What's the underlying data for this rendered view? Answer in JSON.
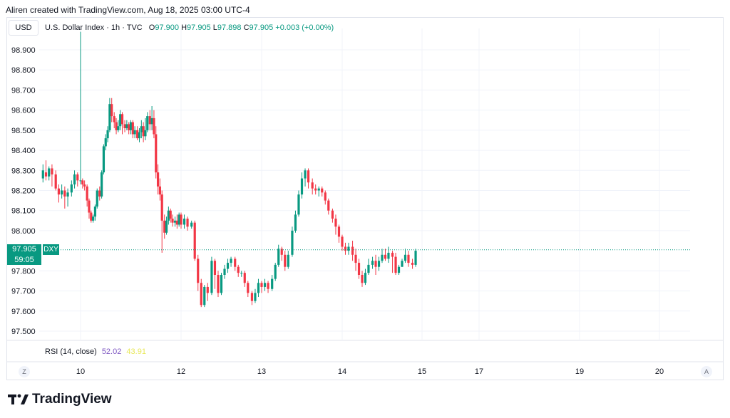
{
  "caption": "Aliren created with TradingView.com, Aug 18, 2025 03:00 UTC-4",
  "currency_button": "USD",
  "legend": {
    "symbol_text": "U.S. Dollar Index · 1h · TVC",
    "o_label": "O",
    "o_value": "97.900",
    "h_label": "H",
    "h_value": "97.905",
    "l_label": "L",
    "l_value": "97.898",
    "c_label": "C",
    "c_value": "97.905",
    "change": "+0.003 (+0.00%)"
  },
  "rsi": {
    "label": "RSI (14, close)",
    "value1": "52.02",
    "value2": "43.91"
  },
  "price_badge": {
    "price": "97.905",
    "symbol": "DXY",
    "countdown": "59:05"
  },
  "time_axis": {
    "tz_button": "Z",
    "auto_button": "A"
  },
  "logo": {
    "text": "TradingView"
  },
  "colors": {
    "up": "#089981",
    "down": "#f23645",
    "grid": "#f0f3fa",
    "rsi1": "#7e57c2",
    "rsi2": "#e8e85a"
  },
  "chart_data": {
    "type": "candlestick",
    "title": "U.S. Dollar Index · 1h · TVC",
    "ylim": [
      97.45,
      99.0
    ],
    "y_ticks": [
      "98.900",
      "98.800",
      "98.700",
      "98.600",
      "98.500",
      "98.400",
      "98.300",
      "98.200",
      "98.100",
      "98.000",
      "97.800",
      "97.700",
      "97.600",
      "97.500"
    ],
    "x_ticks": [
      {
        "label": "10",
        "x": 10.0
      },
      {
        "label": "12",
        "x": 12.0
      },
      {
        "label": "13",
        "x": 13.0
      },
      {
        "label": "14",
        "x": 14.0
      },
      {
        "label": "15",
        "x": 15.0
      },
      {
        "label": "17",
        "x": 16.7
      },
      {
        "label": "19",
        "x": 18.7
      },
      {
        "label": "20",
        "x": 19.7
      }
    ],
    "xlim": [
      9.45,
      20.2
    ],
    "current_price": 97.905,
    "bar_spacing_days": 0.0417,
    "candles": [
      [
        9.5,
        98.26,
        98.3,
        98.33,
        98.24
      ],
      [
        9.54,
        98.29,
        98.27,
        98.35,
        98.25
      ],
      [
        9.58,
        98.27,
        98.31,
        98.32,
        98.25
      ],
      [
        9.62,
        98.31,
        98.28,
        98.33,
        98.22
      ],
      [
        9.67,
        98.28,
        98.21,
        98.3,
        98.2
      ],
      [
        9.71,
        98.21,
        98.18,
        98.23,
        98.14
      ],
      [
        9.75,
        98.18,
        98.2,
        98.23,
        98.16
      ],
      [
        9.79,
        98.2,
        98.17,
        98.22,
        98.11
      ],
      [
        9.83,
        98.17,
        98.19,
        98.21,
        98.12
      ],
      [
        9.88,
        98.19,
        98.23,
        98.25,
        98.17
      ],
      [
        9.92,
        98.23,
        98.28,
        98.3,
        98.21
      ],
      [
        9.96,
        98.28,
        98.25,
        98.29,
        98.22
      ],
      [
        10.0,
        98.25,
        98.25,
        98.99,
        98.23
      ],
      [
        10.04,
        98.25,
        98.23,
        98.26,
        98.21
      ],
      [
        10.08,
        98.23,
        98.22,
        98.25,
        98.2
      ],
      [
        10.13,
        98.22,
        98.15,
        98.23,
        98.12
      ],
      [
        10.17,
        98.15,
        98.09,
        98.16,
        98.06
      ],
      [
        10.21,
        98.09,
        98.05,
        98.1,
        98.04
      ],
      [
        10.25,
        98.05,
        98.07,
        98.08,
        98.04
      ],
      [
        10.29,
        98.07,
        98.12,
        98.13,
        98.05
      ],
      [
        10.33,
        98.12,
        98.2,
        98.21,
        98.11
      ],
      [
        10.38,
        98.2,
        98.17,
        98.22,
        98.15
      ],
      [
        10.42,
        98.17,
        98.29,
        98.3,
        98.16
      ],
      [
        10.46,
        98.29,
        98.42,
        98.43,
        98.28
      ],
      [
        10.5,
        98.42,
        98.46,
        98.48,
        98.4
      ],
      [
        10.54,
        98.46,
        98.5,
        98.52,
        98.44
      ],
      [
        10.58,
        98.5,
        98.63,
        98.66,
        98.49
      ],
      [
        10.62,
        98.63,
        98.57,
        98.66,
        98.54
      ],
      [
        10.67,
        98.57,
        98.54,
        98.59,
        98.51
      ],
      [
        10.71,
        98.54,
        98.5,
        98.56,
        98.48
      ],
      [
        10.75,
        98.5,
        98.52,
        98.55,
        98.49
      ],
      [
        10.79,
        98.52,
        98.58,
        98.6,
        98.5
      ],
      [
        10.83,
        98.58,
        98.53,
        98.59,
        98.48
      ],
      [
        10.88,
        98.53,
        98.51,
        98.55,
        98.49
      ],
      [
        10.92,
        98.51,
        98.53,
        98.55,
        98.5
      ],
      [
        10.96,
        98.53,
        98.5,
        98.54,
        98.48
      ],
      [
        11.0,
        98.5,
        98.54,
        98.55,
        98.48
      ],
      [
        11.04,
        98.54,
        98.48,
        98.55,
        98.46
      ],
      [
        11.08,
        98.48,
        98.5,
        98.52,
        98.46
      ],
      [
        11.13,
        98.5,
        98.46,
        98.52,
        98.45
      ],
      [
        11.17,
        98.46,
        98.49,
        98.51,
        98.44
      ],
      [
        11.21,
        98.49,
        98.52,
        98.55,
        98.46
      ],
      [
        11.25,
        98.52,
        98.47,
        98.54,
        98.44
      ],
      [
        11.29,
        98.47,
        98.5,
        98.56,
        98.45
      ],
      [
        11.33,
        98.5,
        98.57,
        98.59,
        98.49
      ],
      [
        11.38,
        98.57,
        98.53,
        98.6,
        98.5
      ],
      [
        11.42,
        98.53,
        98.56,
        98.62,
        98.5
      ],
      [
        11.46,
        98.56,
        98.48,
        98.6,
        98.46
      ],
      [
        11.5,
        98.48,
        98.29,
        98.52,
        98.26
      ],
      [
        11.54,
        98.29,
        98.22,
        98.33,
        98.18
      ],
      [
        11.58,
        98.22,
        98.18,
        98.26,
        98.15
      ],
      [
        11.62,
        98.18,
        98.05,
        98.2,
        97.89
      ],
      [
        11.67,
        98.05,
        97.99,
        98.08,
        97.96
      ],
      [
        11.71,
        97.99,
        98.05,
        98.07,
        97.98
      ],
      [
        11.75,
        98.05,
        98.1,
        98.12,
        98.03
      ],
      [
        11.79,
        98.1,
        98.06,
        98.11,
        98.04
      ],
      [
        11.83,
        98.06,
        98.04,
        98.08,
        98.02
      ],
      [
        11.88,
        98.04,
        98.05,
        98.07,
        98.02
      ],
      [
        11.92,
        98.05,
        98.03,
        98.08,
        98.01
      ],
      [
        11.96,
        98.03,
        98.08,
        98.09,
        98.02
      ],
      [
        12.0,
        98.08,
        98.03,
        98.09,
        98.01
      ],
      [
        12.04,
        98.03,
        98.06,
        98.08,
        98.01
      ],
      [
        12.08,
        98.06,
        98.02,
        98.07,
        98.0
      ],
      [
        12.13,
        98.02,
        98.04,
        98.05,
        98.01
      ],
      [
        12.17,
        98.04,
        97.86,
        98.05,
        97.85
      ],
      [
        12.21,
        97.86,
        97.74,
        97.88,
        97.7
      ],
      [
        12.25,
        97.74,
        97.63,
        97.76,
        97.62
      ],
      [
        12.29,
        97.63,
        97.72,
        97.73,
        97.62
      ],
      [
        12.33,
        97.72,
        97.69,
        97.74,
        97.65
      ],
      [
        12.38,
        97.69,
        97.85,
        97.87,
        97.68
      ],
      [
        12.42,
        97.85,
        97.78,
        97.86,
        97.71
      ],
      [
        12.46,
        97.78,
        97.69,
        97.8,
        97.67
      ],
      [
        12.5,
        97.69,
        97.78,
        97.79,
        97.68
      ],
      [
        12.54,
        97.78,
        97.81,
        97.83,
        97.76
      ],
      [
        12.58,
        97.81,
        97.84,
        97.86,
        97.79
      ],
      [
        12.62,
        97.84,
        97.86,
        97.87,
        97.82
      ],
      [
        12.67,
        97.86,
        97.82,
        97.87,
        97.8
      ],
      [
        12.71,
        97.82,
        97.79,
        97.83,
        97.77
      ],
      [
        12.75,
        97.79,
        97.79,
        97.8,
        97.77
      ],
      [
        12.79,
        97.79,
        97.74,
        97.8,
        97.72
      ],
      [
        12.83,
        97.74,
        97.69,
        97.75,
        97.67
      ],
      [
        12.88,
        97.69,
        97.65,
        97.7,
        97.63
      ],
      [
        12.92,
        97.65,
        97.69,
        97.71,
        97.64
      ],
      [
        12.96,
        97.69,
        97.74,
        97.76,
        97.67
      ],
      [
        13.0,
        97.74,
        97.72,
        97.75,
        97.69
      ],
      [
        13.04,
        97.72,
        97.74,
        97.76,
        97.7
      ],
      [
        13.08,
        97.74,
        97.71,
        97.75,
        97.69
      ],
      [
        13.13,
        97.71,
        97.76,
        97.78,
        97.7
      ],
      [
        13.17,
        97.76,
        97.83,
        97.84,
        97.75
      ],
      [
        13.21,
        97.83,
        97.91,
        97.93,
        97.82
      ],
      [
        13.25,
        97.91,
        97.88,
        97.92,
        97.85
      ],
      [
        13.29,
        97.88,
        97.82,
        97.9,
        97.8
      ],
      [
        13.33,
        97.82,
        97.88,
        97.9,
        97.81
      ],
      [
        13.38,
        97.88,
        98.0,
        98.02,
        97.87
      ],
      [
        13.42,
        98.0,
        98.08,
        98.1,
        97.99
      ],
      [
        13.46,
        98.08,
        98.18,
        98.2,
        98.07
      ],
      [
        13.5,
        98.18,
        98.26,
        98.29,
        98.16
      ],
      [
        13.54,
        98.26,
        98.3,
        98.31,
        98.22
      ],
      [
        13.58,
        98.3,
        98.24,
        98.31,
        98.21
      ],
      [
        13.63,
        98.24,
        98.21,
        98.26,
        98.18
      ],
      [
        13.67,
        98.21,
        98.2,
        98.23,
        98.18
      ],
      [
        13.71,
        98.2,
        98.21,
        98.22,
        98.17
      ],
      [
        13.75,
        98.21,
        98.19,
        98.22,
        98.17
      ],
      [
        13.79,
        98.19,
        98.15,
        98.2,
        98.13
      ],
      [
        13.83,
        98.15,
        98.1,
        98.16,
        98.08
      ],
      [
        13.88,
        98.1,
        98.06,
        98.11,
        98.04
      ],
      [
        13.92,
        98.06,
        98.02,
        98.08,
        97.98
      ],
      [
        13.96,
        98.02,
        97.97,
        98.03,
        97.94
      ],
      [
        14.0,
        97.97,
        97.92,
        97.98,
        97.9
      ],
      [
        14.04,
        97.92,
        97.9,
        97.94,
        97.88
      ],
      [
        14.08,
        97.9,
        97.92,
        97.94,
        97.88
      ],
      [
        14.13,
        97.92,
        97.88,
        97.95,
        97.85
      ],
      [
        14.17,
        97.88,
        97.84,
        97.91,
        97.8
      ],
      [
        14.21,
        97.84,
        97.78,
        97.86,
        97.76
      ],
      [
        14.25,
        97.78,
        97.74,
        97.8,
        97.72
      ],
      [
        14.29,
        97.74,
        97.79,
        97.81,
        97.73
      ],
      [
        14.33,
        97.79,
        97.83,
        97.86,
        97.78
      ],
      [
        14.38,
        97.83,
        97.85,
        97.87,
        97.81
      ],
      [
        14.42,
        97.85,
        97.82,
        97.88,
        97.78
      ],
      [
        14.46,
        97.82,
        97.85,
        97.87,
        97.8
      ],
      [
        14.5,
        97.85,
        97.88,
        97.91,
        97.84
      ],
      [
        14.54,
        97.88,
        97.86,
        97.91,
        97.85
      ],
      [
        14.58,
        97.86,
        97.89,
        97.92,
        97.84
      ],
      [
        14.63,
        97.89,
        97.87,
        97.9,
        97.79
      ],
      [
        14.67,
        97.87,
        97.79,
        97.89,
        97.78
      ],
      [
        14.71,
        97.79,
        97.82,
        97.83,
        97.78
      ],
      [
        14.75,
        97.82,
        97.85,
        97.86,
        97.82
      ],
      [
        14.79,
        97.85,
        97.88,
        97.91,
        97.84
      ],
      [
        14.83,
        97.88,
        97.84,
        97.9,
        97.82
      ],
      [
        14.88,
        97.84,
        97.83,
        97.86,
        97.81
      ],
      [
        14.92,
        97.83,
        97.9,
        97.91,
        97.82
      ]
    ]
  }
}
